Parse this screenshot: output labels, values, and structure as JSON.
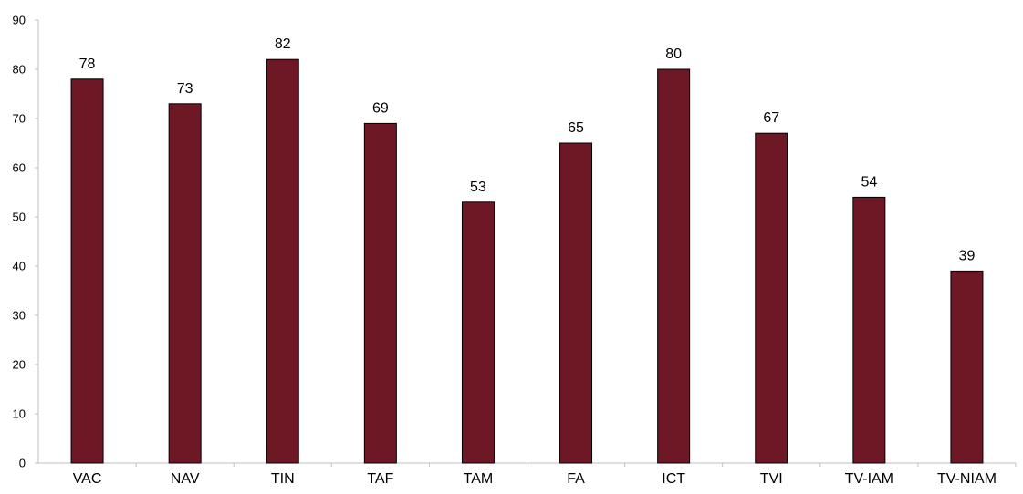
{
  "chart_data": {
    "type": "bar",
    "title": "",
    "xlabel": "",
    "ylabel": "",
    "categories": [
      "VAC",
      "NAV",
      "TIN",
      "TAF",
      "TAM",
      "FA",
      "ICT",
      "TVI",
      "TV-IAM",
      "TV-NIAM"
    ],
    "values": [
      78,
      73,
      82,
      69,
      53,
      65,
      80,
      67,
      54,
      39
    ],
    "ylim": [
      0,
      90
    ],
    "yticks": [
      0,
      10,
      20,
      30,
      40,
      50,
      60,
      70,
      80,
      90
    ],
    "grid": false,
    "legend": "none",
    "data_labels": true,
    "colors": {
      "bar_fill": "#6e1826",
      "bar_stroke": "#000000",
      "axis": "#bfbfbf"
    }
  }
}
